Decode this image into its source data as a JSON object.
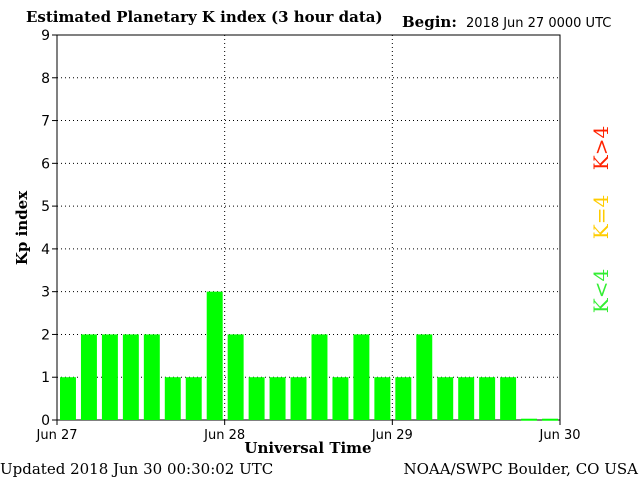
{
  "header": {
    "title": "Estimated Planetary K index (3 hour data)",
    "begin_label": "Begin:",
    "begin_value": "2018 Jun 27 0000 UTC"
  },
  "footer": {
    "updated": "Updated 2018 Jun 30 00:30:02 UTC",
    "credit": "NOAA/SWPC Boulder, CO USA"
  },
  "legend": {
    "k_gt_4": "K>4",
    "k_eq_4": "K=4",
    "k_lt_4": "K<4"
  },
  "colors": {
    "k_lt_4": "#00ff00",
    "k_eq_4": "#ffcc00",
    "k_gt_4": "#ff2200"
  },
  "chart_data": {
    "type": "bar",
    "title": "Estimated Planetary K index (3 hour data)",
    "xlabel": "Universal Time",
    "ylabel": "Kp index",
    "ylim": [
      0,
      9
    ],
    "yticks": [
      "0",
      "1",
      "2",
      "3",
      "4",
      "5",
      "6",
      "7",
      "8",
      "9"
    ],
    "xticks": [
      "Jun 27",
      "Jun 28",
      "Jun 29",
      "Jun 30"
    ],
    "grid": "dotted",
    "interval_hours": 3,
    "values": [
      1,
      2,
      2,
      2,
      2,
      1,
      1,
      3,
      2,
      1,
      1,
      1,
      2,
      1,
      2,
      1,
      1,
      2,
      1,
      1,
      1,
      1,
      0.03,
      0.03
    ]
  }
}
